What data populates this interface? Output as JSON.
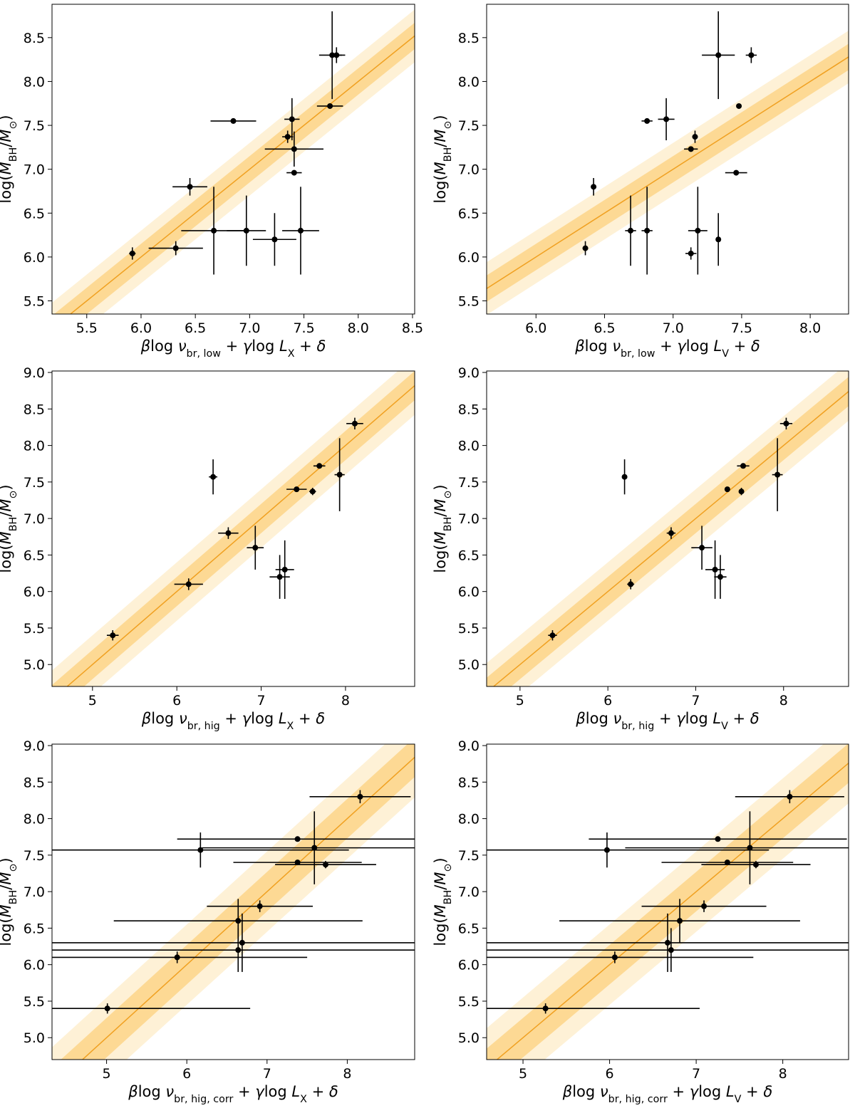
{
  "colors": {
    "line": "#f0a020",
    "band_inner": "#fdd994",
    "band_outer": "#fef1d6",
    "points": "#000000"
  },
  "chart_data": [
    {
      "type": "scatter",
      "panel": "top-left",
      "ylabel_html": "log(M<tspan baseline-shift='sub' font-size='70%'>BH</tspan>/M<tspan baseline-shift='sub' font-size='70%'>⊙</tspan>)",
      "ylabel": "log(M_BH/M_⊙)",
      "xlabel": "βlog ν_br, low + γlog L_X + δ",
      "xlim": [
        5.18,
        8.52
      ],
      "ylim": [
        5.35,
        8.88
      ],
      "xticks": [
        5.5,
        6.0,
        6.5,
        7.0,
        7.5,
        8.0,
        8.5
      ],
      "xtick_labels": [
        "5.5",
        "6.0",
        "6.5",
        "7.0",
        "7.5",
        "8.0",
        "8.5"
      ],
      "yticks": [
        5.5,
        6.0,
        6.5,
        7.0,
        7.5,
        8.0,
        8.5
      ],
      "ytick_labels": [
        "5.5",
        "6.0",
        "6.5",
        "7.0",
        "7.5",
        "8.0",
        "8.5"
      ],
      "fit": {
        "slope": 1.0,
        "intercept": 0.0,
        "band_inner": 0.15,
        "band_outer": 0.3
      },
      "points": [
        {
          "x": 5.92,
          "y": 6.04,
          "xerr": 0.03,
          "yerr": 0.07
        },
        {
          "x": 6.32,
          "y": 6.1,
          "xerr": 0.25,
          "yerr": 0.08
        },
        {
          "x": 6.45,
          "y": 6.8,
          "xerr": 0.16,
          "yerr": 0.1
        },
        {
          "x": 6.67,
          "y": 6.3,
          "xerr": 0.3,
          "yerr": 0.5
        },
        {
          "x": 6.85,
          "y": 7.55,
          "xerr": 0.21,
          "yerr": 0.03
        },
        {
          "x": 6.97,
          "y": 6.3,
          "xerr": 0.18,
          "yerr": 0.4
        },
        {
          "x": 7.23,
          "y": 6.2,
          "xerr": 0.2,
          "yerr": 0.3
        },
        {
          "x": 7.35,
          "y": 7.37,
          "xerr": 0.05,
          "yerr": 0.07
        },
        {
          "x": 7.39,
          "y": 7.57,
          "xerr": 0.07,
          "yerr": 0.24
        },
        {
          "x": 7.41,
          "y": 7.23,
          "xerr": 0.27,
          "yerr": 0.2
        },
        {
          "x": 7.41,
          "y": 6.96,
          "xerr": 0.07,
          "yerr": 0.03
        },
        {
          "x": 7.47,
          "y": 6.3,
          "xerr": 0.17,
          "yerr": 0.5
        },
        {
          "x": 7.74,
          "y": 7.72,
          "xerr": 0.12,
          "yerr": 0.03
        },
        {
          "x": 7.76,
          "y": 8.3,
          "xerr": 0.12,
          "yerr": 0.5
        },
        {
          "x": 7.8,
          "y": 8.3,
          "xerr": 0.05,
          "yerr": 0.09
        }
      ]
    },
    {
      "type": "scatter",
      "panel": "top-right",
      "ylabel": "log(M_BH/M_⊙)",
      "xlabel": "βlog ν_br, low + γlog L_V + δ",
      "xlim": [
        5.64,
        8.28
      ],
      "ylim": [
        5.35,
        8.88
      ],
      "xticks": [
        6.0,
        6.5,
        7.0,
        7.5,
        8.0
      ],
      "xtick_labels": [
        "6.0",
        "6.5",
        "7.0",
        "7.5",
        "8.0"
      ],
      "yticks": [
        5.5,
        6.0,
        6.5,
        7.0,
        7.5,
        8.0,
        8.5
      ],
      "ytick_labels": [
        "5.5",
        "6.0",
        "6.5",
        "7.0",
        "7.5",
        "8.0",
        "8.5"
      ],
      "fit": {
        "slope": 1.0,
        "intercept": 0.0,
        "band_inner": 0.15,
        "band_outer": 0.3
      },
      "points": [
        {
          "x": 6.36,
          "y": 6.1,
          "xerr": 0.02,
          "yerr": 0.08
        },
        {
          "x": 6.42,
          "y": 6.8,
          "xerr": 0.01,
          "yerr": 0.1
        },
        {
          "x": 6.69,
          "y": 6.3,
          "xerr": 0.04,
          "yerr": 0.4
        },
        {
          "x": 6.81,
          "y": 7.55,
          "xerr": 0.04,
          "yerr": 0.03
        },
        {
          "x": 6.81,
          "y": 6.3,
          "xerr": 0.04,
          "yerr": 0.5
        },
        {
          "x": 6.95,
          "y": 7.57,
          "xerr": 0.06,
          "yerr": 0.24
        },
        {
          "x": 7.13,
          "y": 7.23,
          "xerr": 0.05,
          "yerr": 0.03
        },
        {
          "x": 7.13,
          "y": 6.04,
          "xerr": 0.04,
          "yerr": 0.07
        },
        {
          "x": 7.16,
          "y": 7.37,
          "xerr": 0.02,
          "yerr": 0.07
        },
        {
          "x": 7.18,
          "y": 6.3,
          "xerr": 0.07,
          "yerr": 0.5
        },
        {
          "x": 7.33,
          "y": 8.3,
          "xerr": 0.12,
          "yerr": 0.5
        },
        {
          "x": 7.33,
          "y": 6.2,
          "xerr": 0.01,
          "yerr": 0.3
        },
        {
          "x": 7.46,
          "y": 6.96,
          "xerr": 0.08,
          "yerr": 0.03
        },
        {
          "x": 7.48,
          "y": 7.72,
          "xerr": 0.0,
          "yerr": 0.0
        },
        {
          "x": 7.57,
          "y": 8.3,
          "xerr": 0.04,
          "yerr": 0.09
        }
      ]
    },
    {
      "type": "scatter",
      "panel": "middle-left",
      "ylabel": "log(M_BH/M_⊙)",
      "xlabel": "βlog ν_br, hig + γlog L_X + δ",
      "xlim": [
        4.52,
        8.82
      ],
      "ylim": [
        4.7,
        9.02
      ],
      "xticks": [
        5,
        6,
        7,
        8
      ],
      "xtick_labels": [
        "5",
        "6",
        "7",
        "8"
      ],
      "yticks": [
        5.0,
        5.5,
        6.0,
        6.5,
        7.0,
        7.5,
        8.0,
        8.5,
        9.0
      ],
      "ytick_labels": [
        "5.0",
        "5.5",
        "6.0",
        "6.5",
        "7.0",
        "7.5",
        "8.0",
        "8.5",
        "9.0"
      ],
      "fit": {
        "slope": 1.0,
        "intercept": 0.0,
        "band_inner": 0.2,
        "band_outer": 0.4
      },
      "points": [
        {
          "x": 5.24,
          "y": 5.4,
          "xerr": 0.07,
          "yerr": 0.07
        },
        {
          "x": 6.14,
          "y": 6.1,
          "xerr": 0.17,
          "yerr": 0.08
        },
        {
          "x": 6.43,
          "y": 7.57,
          "xerr": 0.05,
          "yerr": 0.24
        },
        {
          "x": 6.61,
          "y": 6.8,
          "xerr": 0.12,
          "yerr": 0.08
        },
        {
          "x": 6.93,
          "y": 6.6,
          "xerr": 0.1,
          "yerr": 0.3
        },
        {
          "x": 7.22,
          "y": 6.2,
          "xerr": 0.12,
          "yerr": 0.3
        },
        {
          "x": 7.28,
          "y": 6.3,
          "xerr": 0.11,
          "yerr": 0.4
        },
        {
          "x": 7.42,
          "y": 7.4,
          "xerr": 0.12,
          "yerr": 0.03
        },
        {
          "x": 7.61,
          "y": 7.37,
          "xerr": 0.04,
          "yerr": 0.05
        },
        {
          "x": 7.69,
          "y": 7.72,
          "xerr": 0.07,
          "yerr": 0.03
        },
        {
          "x": 7.93,
          "y": 7.6,
          "xerr": 0.06,
          "yerr": 0.5
        },
        {
          "x": 8.11,
          "y": 8.3,
          "xerr": 0.1,
          "yerr": 0.08
        }
      ]
    },
    {
      "type": "scatter",
      "panel": "middle-right",
      "ylabel": "log(M_BH/M_⊙)",
      "xlabel": "βlog ν_br, hig + γlog L_V + δ",
      "xlim": [
        4.62,
        8.74
      ],
      "ylim": [
        4.7,
        9.02
      ],
      "xticks": [
        5,
        6,
        7,
        8
      ],
      "xtick_labels": [
        "5",
        "6",
        "7",
        "8"
      ],
      "yticks": [
        5.0,
        5.5,
        6.0,
        6.5,
        7.0,
        7.5,
        8.0,
        8.5,
        9.0
      ],
      "ytick_labels": [
        "5.0",
        "5.5",
        "6.0",
        "6.5",
        "7.0",
        "7.5",
        "8.0",
        "8.5",
        "9.0"
      ],
      "fit": {
        "slope": 1.0,
        "intercept": 0.0,
        "band_inner": 0.2,
        "band_outer": 0.4
      },
      "points": [
        {
          "x": 5.37,
          "y": 5.4,
          "xerr": 0.05,
          "yerr": 0.07
        },
        {
          "x": 6.19,
          "y": 7.57,
          "xerr": 0.02,
          "yerr": 0.24
        },
        {
          "x": 6.26,
          "y": 6.1,
          "xerr": 0.04,
          "yerr": 0.07
        },
        {
          "x": 6.72,
          "y": 6.8,
          "xerr": 0.05,
          "yerr": 0.08
        },
        {
          "x": 7.07,
          "y": 6.6,
          "xerr": 0.12,
          "yerr": 0.3
        },
        {
          "x": 7.22,
          "y": 6.3,
          "xerr": 0.11,
          "yerr": 0.4
        },
        {
          "x": 7.28,
          "y": 6.2,
          "xerr": 0.07,
          "yerr": 0.3
        },
        {
          "x": 7.36,
          "y": 7.4,
          "xerr": 0.03,
          "yerr": 0.03
        },
        {
          "x": 7.52,
          "y": 7.37,
          "xerr": 0.02,
          "yerr": 0.05
        },
        {
          "x": 7.54,
          "y": 7.72,
          "xerr": 0.07,
          "yerr": 0.03
        },
        {
          "x": 7.93,
          "y": 7.6,
          "xerr": 0.06,
          "yerr": 0.5
        },
        {
          "x": 8.03,
          "y": 8.3,
          "xerr": 0.07,
          "yerr": 0.08
        }
      ]
    },
    {
      "type": "scatter",
      "panel": "bottom-left",
      "ylabel": "log(M_BH/M_⊙)",
      "xlabel": "βlog ν_br, hig, corr + γlog L_X + δ",
      "xlim": [
        4.32,
        8.84
      ],
      "ylim": [
        4.7,
        9.02
      ],
      "xticks": [
        5,
        6,
        7,
        8
      ],
      "xtick_labels": [
        "5",
        "6",
        "7",
        "8"
      ],
      "yticks": [
        5.0,
        5.5,
        6.0,
        6.5,
        7.0,
        7.5,
        8.0,
        8.5,
        9.0
      ],
      "ytick_labels": [
        "5.0",
        "5.5",
        "6.0",
        "6.5",
        "7.0",
        "7.5",
        "8.0",
        "8.5",
        "9.0"
      ],
      "fit": {
        "slope": 1.0,
        "intercept": 0.0,
        "band_inner": 0.27,
        "band_outer": 0.55
      },
      "points": [
        {
          "x": 5.01,
          "y": 5.4,
          "xerr": 1.78,
          "yerr": 0.07
        },
        {
          "x": 5.88,
          "y": 6.1,
          "xerr": 1.62,
          "yerr": 0.08
        },
        {
          "x": 6.17,
          "y": 7.57,
          "xerr": 1.85,
          "yerr": 0.24
        },
        {
          "x": 6.64,
          "y": 6.6,
          "xerr": 1.55,
          "yerr": 0.3
        },
        {
          "x": 6.64,
          "y": 6.2,
          "xerr": 2.4,
          "yerr": 0.3
        },
        {
          "x": 6.69,
          "y": 6.3,
          "xerr": 2.4,
          "yerr": 0.4
        },
        {
          "x": 6.91,
          "y": 6.8,
          "xerr": 0.66,
          "yerr": 0.08
        },
        {
          "x": 7.38,
          "y": 7.72,
          "xerr": 1.5,
          "yerr": 0.03
        },
        {
          "x": 7.38,
          "y": 7.4,
          "xerr": 0.8,
          "yerr": 0.03
        },
        {
          "x": 7.59,
          "y": 7.6,
          "xerr": 1.4,
          "yerr": 0.5
        },
        {
          "x": 7.73,
          "y": 7.37,
          "xerr": 0.63,
          "yerr": 0.05
        },
        {
          "x": 8.16,
          "y": 8.3,
          "xerr": 0.63,
          "yerr": 0.09
        }
      ]
    },
    {
      "type": "scatter",
      "panel": "bottom-right",
      "ylabel": "log(M_BH/M_⊙)",
      "xlabel": "βlog ν_br, hig, corr + γlog L_V + δ",
      "xlim": [
        4.58,
        8.76
      ],
      "ylim": [
        4.7,
        9.02
      ],
      "xticks": [
        5,
        6,
        7,
        8
      ],
      "xtick_labels": [
        "5",
        "6",
        "7",
        "8"
      ],
      "yticks": [
        5.0,
        5.5,
        6.0,
        6.5,
        7.0,
        7.5,
        8.0,
        8.5,
        9.0
      ],
      "ytick_labels": [
        "5.0",
        "5.5",
        "6.0",
        "6.5",
        "7.0",
        "7.5",
        "8.0",
        "8.5",
        "9.0"
      ],
      "fit": {
        "slope": 1.0,
        "intercept": 0.0,
        "band_inner": 0.27,
        "band_outer": 0.55
      },
      "points": [
        {
          "x": 5.26,
          "y": 5.4,
          "xerr": 1.78,
          "yerr": 0.07
        },
        {
          "x": 5.97,
          "y": 7.57,
          "xerr": 1.87,
          "yerr": 0.24
        },
        {
          "x": 6.06,
          "y": 6.1,
          "xerr": 1.6,
          "yerr": 0.08
        },
        {
          "x": 6.67,
          "y": 6.3,
          "xerr": 2.4,
          "yerr": 0.4
        },
        {
          "x": 6.71,
          "y": 6.2,
          "xerr": 2.4,
          "yerr": 0.3
        },
        {
          "x": 6.81,
          "y": 6.6,
          "xerr": 1.39,
          "yerr": 0.3
        },
        {
          "x": 7.09,
          "y": 6.8,
          "xerr": 0.72,
          "yerr": 0.08
        },
        {
          "x": 7.25,
          "y": 7.72,
          "xerr": 1.49,
          "yerr": 0.03
        },
        {
          "x": 7.36,
          "y": 7.4,
          "xerr": 0.76,
          "yerr": 0.03
        },
        {
          "x": 7.62,
          "y": 7.6,
          "xerr": 1.44,
          "yerr": 0.5
        },
        {
          "x": 7.69,
          "y": 7.37,
          "xerr": 0.63,
          "yerr": 0.05
        },
        {
          "x": 8.08,
          "y": 8.3,
          "xerr": 0.63,
          "yerr": 0.09
        }
      ]
    }
  ]
}
